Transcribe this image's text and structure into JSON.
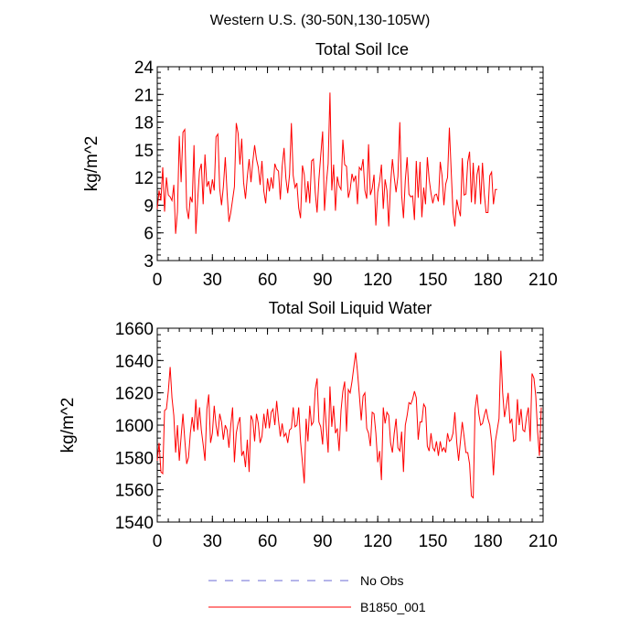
{
  "figure_title": "Western U.S. (30-50N,130-105W)",
  "legend": [
    {
      "label": "No Obs",
      "color": "#6b6bd6",
      "dash": true
    },
    {
      "label": "B1850_001",
      "color": "#ff0000",
      "dash": false
    }
  ],
  "chart_data": [
    {
      "type": "line",
      "title": "Total Soil Ice",
      "ylabel": "kg/m^2",
      "xlabel": "",
      "xlim": [
        0,
        210
      ],
      "ylim": [
        3,
        24
      ],
      "xticks": [
        0,
        30,
        60,
        90,
        120,
        150,
        180,
        210
      ],
      "yticks": [
        3,
        6,
        9,
        12,
        15,
        18,
        21,
        24
      ],
      "series": [
        {
          "name": "B1850_001",
          "color": "#ff0000",
          "values": [
            8.6,
            10.6,
            9.5,
            13.1,
            8.3,
            12.0,
            10.1,
            9.9,
            9.5,
            11.2,
            5.9,
            8.3,
            16.5,
            11.5,
            16.9,
            17.2,
            8.7,
            7.5,
            9.9,
            9.3,
            15.5,
            5.9,
            9.6,
            12.7,
            13.5,
            9.1,
            14.5,
            11.0,
            11.6,
            10.2,
            11.8,
            10.6,
            16.4,
            16.7,
            10.8,
            9.0,
            11.0,
            14.2,
            10.3,
            7.2,
            8.2,
            9.6,
            11.0,
            17.9,
            16.8,
            13.4,
            16.2,
            11.5,
            9.7,
            12.1,
            14.0,
            11.5,
            13.7,
            15.5,
            14.0,
            13.1,
            11.2,
            13.8,
            10.5,
            9.2,
            11.9,
            10.5,
            12.0,
            10.8,
            13.5,
            12.9,
            12.7,
            9.6,
            13.2,
            15.2,
            11.9,
            10.3,
            12.3,
            17.9,
            12.2,
            10.9,
            11.4,
            8.7,
            7.6,
            13.3,
            12.3,
            9.3,
            11.6,
            9.2,
            13.8,
            14.0,
            10.4,
            8.2,
            11.8,
            14.4,
            17.0,
            8.4,
            11.3,
            13.5,
            21.2,
            10.6,
            13.4,
            8.4,
            12.1,
            11.1,
            10.7,
            16.1,
            13.4,
            13.2,
            9.8,
            10.7,
            12.4,
            11.6,
            12.2,
            9.1,
            13.1,
            12.8,
            14.0,
            10.6,
            9.7,
            15.6,
            10.1,
            10.8,
            12.3,
            6.8,
            10.4,
            11.6,
            13.4,
            8.6,
            11.8,
            10.6,
            6.7,
            11.3,
            14.0,
            12.0,
            10.4,
            12.1,
            18.0,
            10.1,
            7.6,
            11.7,
            14.2,
            10.2,
            9.9,
            10.0,
            7.4,
            13.8,
            9.8,
            13.7,
            7.7,
            10.9,
            9.1,
            14.2,
            11.8,
            10.3,
            9.2,
            10.1,
            10.2,
            9.4,
            13.7,
            12.2,
            9.0,
            11.3,
            12.0,
            17.4,
            12.7,
            8.2,
            6.7,
            9.6,
            8.6,
            7.8,
            14.1,
            10.1,
            10.2,
            13.7,
            14.8,
            9.3,
            13.6,
            9.1,
            12.3,
            13.3,
            9.1,
            13.6,
            10.2,
            8.2,
            8.2,
            12.2,
            12.6,
            9.1,
            10.7,
            10.7
          ]
        }
      ]
    },
    {
      "type": "line",
      "title": "Total Soil Liquid Water",
      "ylabel": "kg/m^2",
      "xlabel": "",
      "xlim": [
        0,
        210
      ],
      "ylim": [
        1540,
        1660
      ],
      "xticks": [
        0,
        30,
        60,
        90,
        120,
        150,
        180,
        210
      ],
      "yticks": [
        1540,
        1560,
        1580,
        1600,
        1620,
        1640,
        1660
      ],
      "series": [
        {
          "name": "B1850_001",
          "color": "#ff0000",
          "values": [
            1578,
            1589,
            1571,
            1570,
            1609,
            1610,
            1621,
            1636,
            1617,
            1606,
            1583,
            1600,
            1578,
            1593,
            1607,
            1591,
            1576,
            1580,
            1595,
            1605,
            1596,
            1616,
            1597,
            1611,
            1597,
            1588,
            1578,
            1610,
            1619,
            1589,
            1595,
            1612,
            1600,
            1593,
            1607,
            1602,
            1591,
            1600,
            1597,
            1586,
            1600,
            1611,
            1577,
            1595,
            1601,
            1605,
            1581,
            1584,
            1574,
            1591,
            1571,
            1606,
            1603,
            1590,
            1607,
            1601,
            1589,
            1593,
            1607,
            1598,
            1610,
            1598,
            1608,
            1610,
            1600,
            1615,
            1603,
            1593,
            1601,
            1593,
            1595,
            1589,
            1597,
            1598,
            1611,
            1599,
            1600,
            1611,
            1590,
            1577,
            1564,
            1604,
            1590,
            1612,
            1600,
            1602,
            1622,
            1629,
            1602,
            1599,
            1588,
            1617,
            1599,
            1583,
            1624,
            1599,
            1612,
            1595,
            1598,
            1584,
            1609,
            1621,
            1627,
            1596,
            1622,
            1620,
            1627,
            1636,
            1645,
            1633,
            1619,
            1603,
            1618,
            1620,
            1598,
            1595,
            1587,
            1608,
            1607,
            1595,
            1577,
            1584,
            1566,
            1611,
            1601,
            1608,
            1606,
            1589,
            1583,
            1595,
            1604,
            1586,
            1584,
            1596,
            1571,
            1600,
            1606,
            1614,
            1613,
            1616,
            1621,
            1617,
            1591,
            1602,
            1602,
            1613,
            1611,
            1587,
            1584,
            1595,
            1586,
            1584,
            1590,
            1581,
            1590,
            1584,
            1586,
            1583,
            1595,
            1590,
            1591,
            1595,
            1608,
            1589,
            1578,
            1590,
            1602,
            1593,
            1583,
            1583,
            1576,
            1556,
            1555,
            1610,
            1619,
            1607,
            1600,
            1601,
            1606,
            1610,
            1604,
            1600,
            1590,
            1569,
            1590,
            1597,
            1604,
            1646,
            1620,
            1605,
            1612,
            1620,
            1601,
            1604,
            1590,
            1591,
            1616,
            1600,
            1610,
            1597,
            1596,
            1605,
            1611,
            1590,
            1632,
            1629,
            1618,
            1596,
            1581,
            1611
          ]
        }
      ]
    }
  ]
}
